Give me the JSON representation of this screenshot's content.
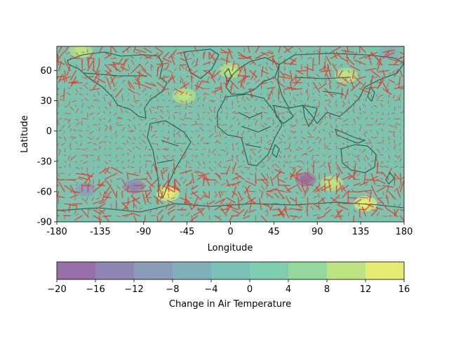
{
  "chart_data": {
    "type": "heatmap",
    "title": "",
    "xlabel": "Longitude",
    "ylabel": "Latitude",
    "xlim": [
      -180,
      180
    ],
    "ylim": [
      -90,
      84
    ],
    "xticks": [
      -180,
      -135,
      -90,
      -45,
      0,
      45,
      90,
      135,
      180
    ],
    "yticks": [
      -90,
      -60,
      -30,
      0,
      30,
      60
    ],
    "overlays": [
      "filled contours",
      "coastlines and country borders",
      "wind vector arrows"
    ],
    "colors": {
      "coastline": "#1f5b4a",
      "arrow": "#e8382d",
      "background_level": "#7cc4b0"
    },
    "colorbar": {
      "label": "Change in Air Temperature",
      "orientation": "horizontal",
      "location": "bottom",
      "levels": [
        -20,
        -16,
        -12,
        -8,
        -4,
        0,
        4,
        8,
        12,
        16
      ],
      "colors": [
        "#9670a6",
        "#8f86b4",
        "#879dba",
        "#7fb0ba",
        "#7cc1b8",
        "#7fcdb0",
        "#95d89c",
        "#bde483",
        "#e6ec73"
      ]
    },
    "hotspots": [
      {
        "lon": -65,
        "lat": -62,
        "level": "12 to 16"
      },
      {
        "lon": 140,
        "lat": -72,
        "level": "12 to 16"
      },
      {
        "lon": -155,
        "lat": 80,
        "level": "8 to 12"
      },
      {
        "lon": 0,
        "lat": 60,
        "level": "8 to 12"
      },
      {
        "lon": 120,
        "lat": 55,
        "level": "8 to 12"
      },
      {
        "lon": -48,
        "lat": 35,
        "level": "8 to 12"
      },
      {
        "lon": 105,
        "lat": -52,
        "level": "8 to 12"
      }
    ],
    "coldspots": [
      {
        "lon": -100,
        "lat": -55,
        "level": "-16 to -12"
      },
      {
        "lon": 78,
        "lat": -48,
        "level": "-20 to -16"
      },
      {
        "lon": -150,
        "lat": -58,
        "level": "-12 to -8"
      },
      {
        "lon": 165,
        "lat": 78,
        "level": "-8 to -4"
      }
    ]
  }
}
